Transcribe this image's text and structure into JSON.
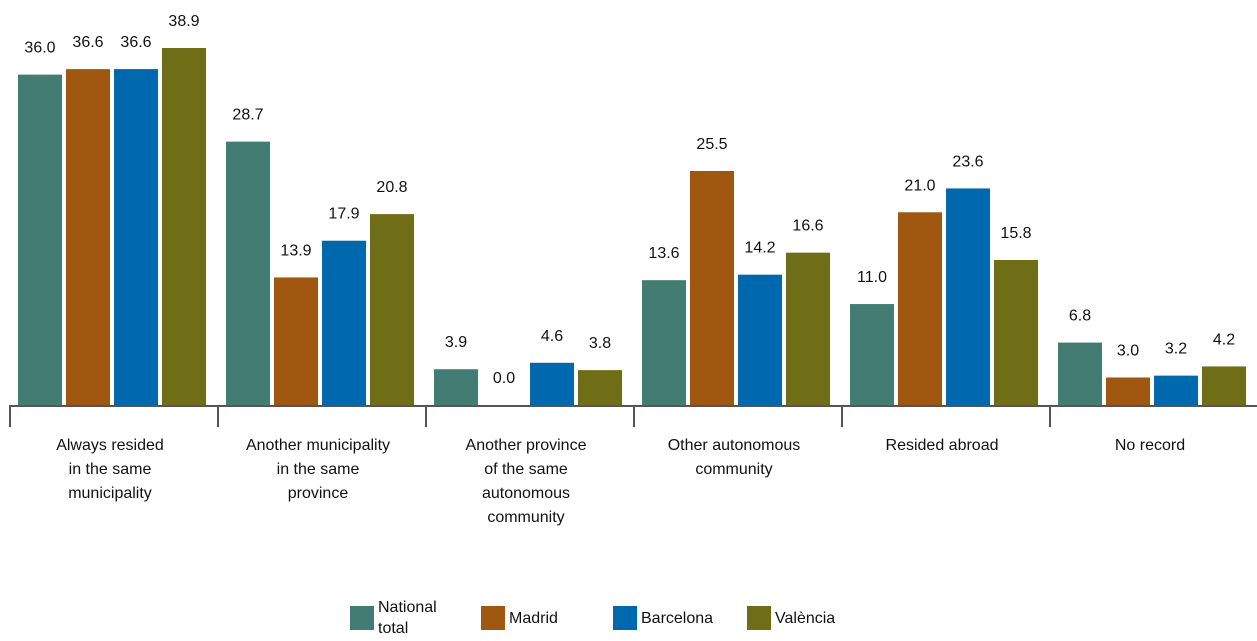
{
  "colors": {
    "axis": "#555555",
    "text": "#111111"
  },
  "chart_data": {
    "type": "bar",
    "title": "",
    "xlabel": "",
    "ylabel": "",
    "ylim": [
      0,
      40
    ],
    "grid": false,
    "legend_position": "bottom",
    "categories": [
      [
        "Always resided",
        "in the same",
        "municipality"
      ],
      [
        "Another municipality",
        "in the same",
        "province"
      ],
      [
        "Another province",
        "of the same",
        "autonomous",
        "community"
      ],
      [
        "Other autonomous",
        "community"
      ],
      [
        "Resided abroad"
      ],
      [
        "No record"
      ]
    ],
    "series": [
      {
        "name": "National total",
        "color": "#437c73",
        "values": [
          36.0,
          28.7,
          3.9,
          13.6,
          11.0,
          6.8
        ]
      },
      {
        "name": "Madrid",
        "color": "#a0570f",
        "values": [
          36.6,
          13.9,
          0.0,
          25.5,
          21.0,
          3.0
        ]
      },
      {
        "name": "Barcelona",
        "color": "#0068ad",
        "values": [
          36.6,
          17.9,
          4.6,
          14.2,
          23.6,
          3.2
        ]
      },
      {
        "name": "València",
        "color": "#6f6d15",
        "values": [
          38.9,
          20.8,
          3.8,
          16.6,
          15.8,
          4.2
        ]
      }
    ]
  }
}
